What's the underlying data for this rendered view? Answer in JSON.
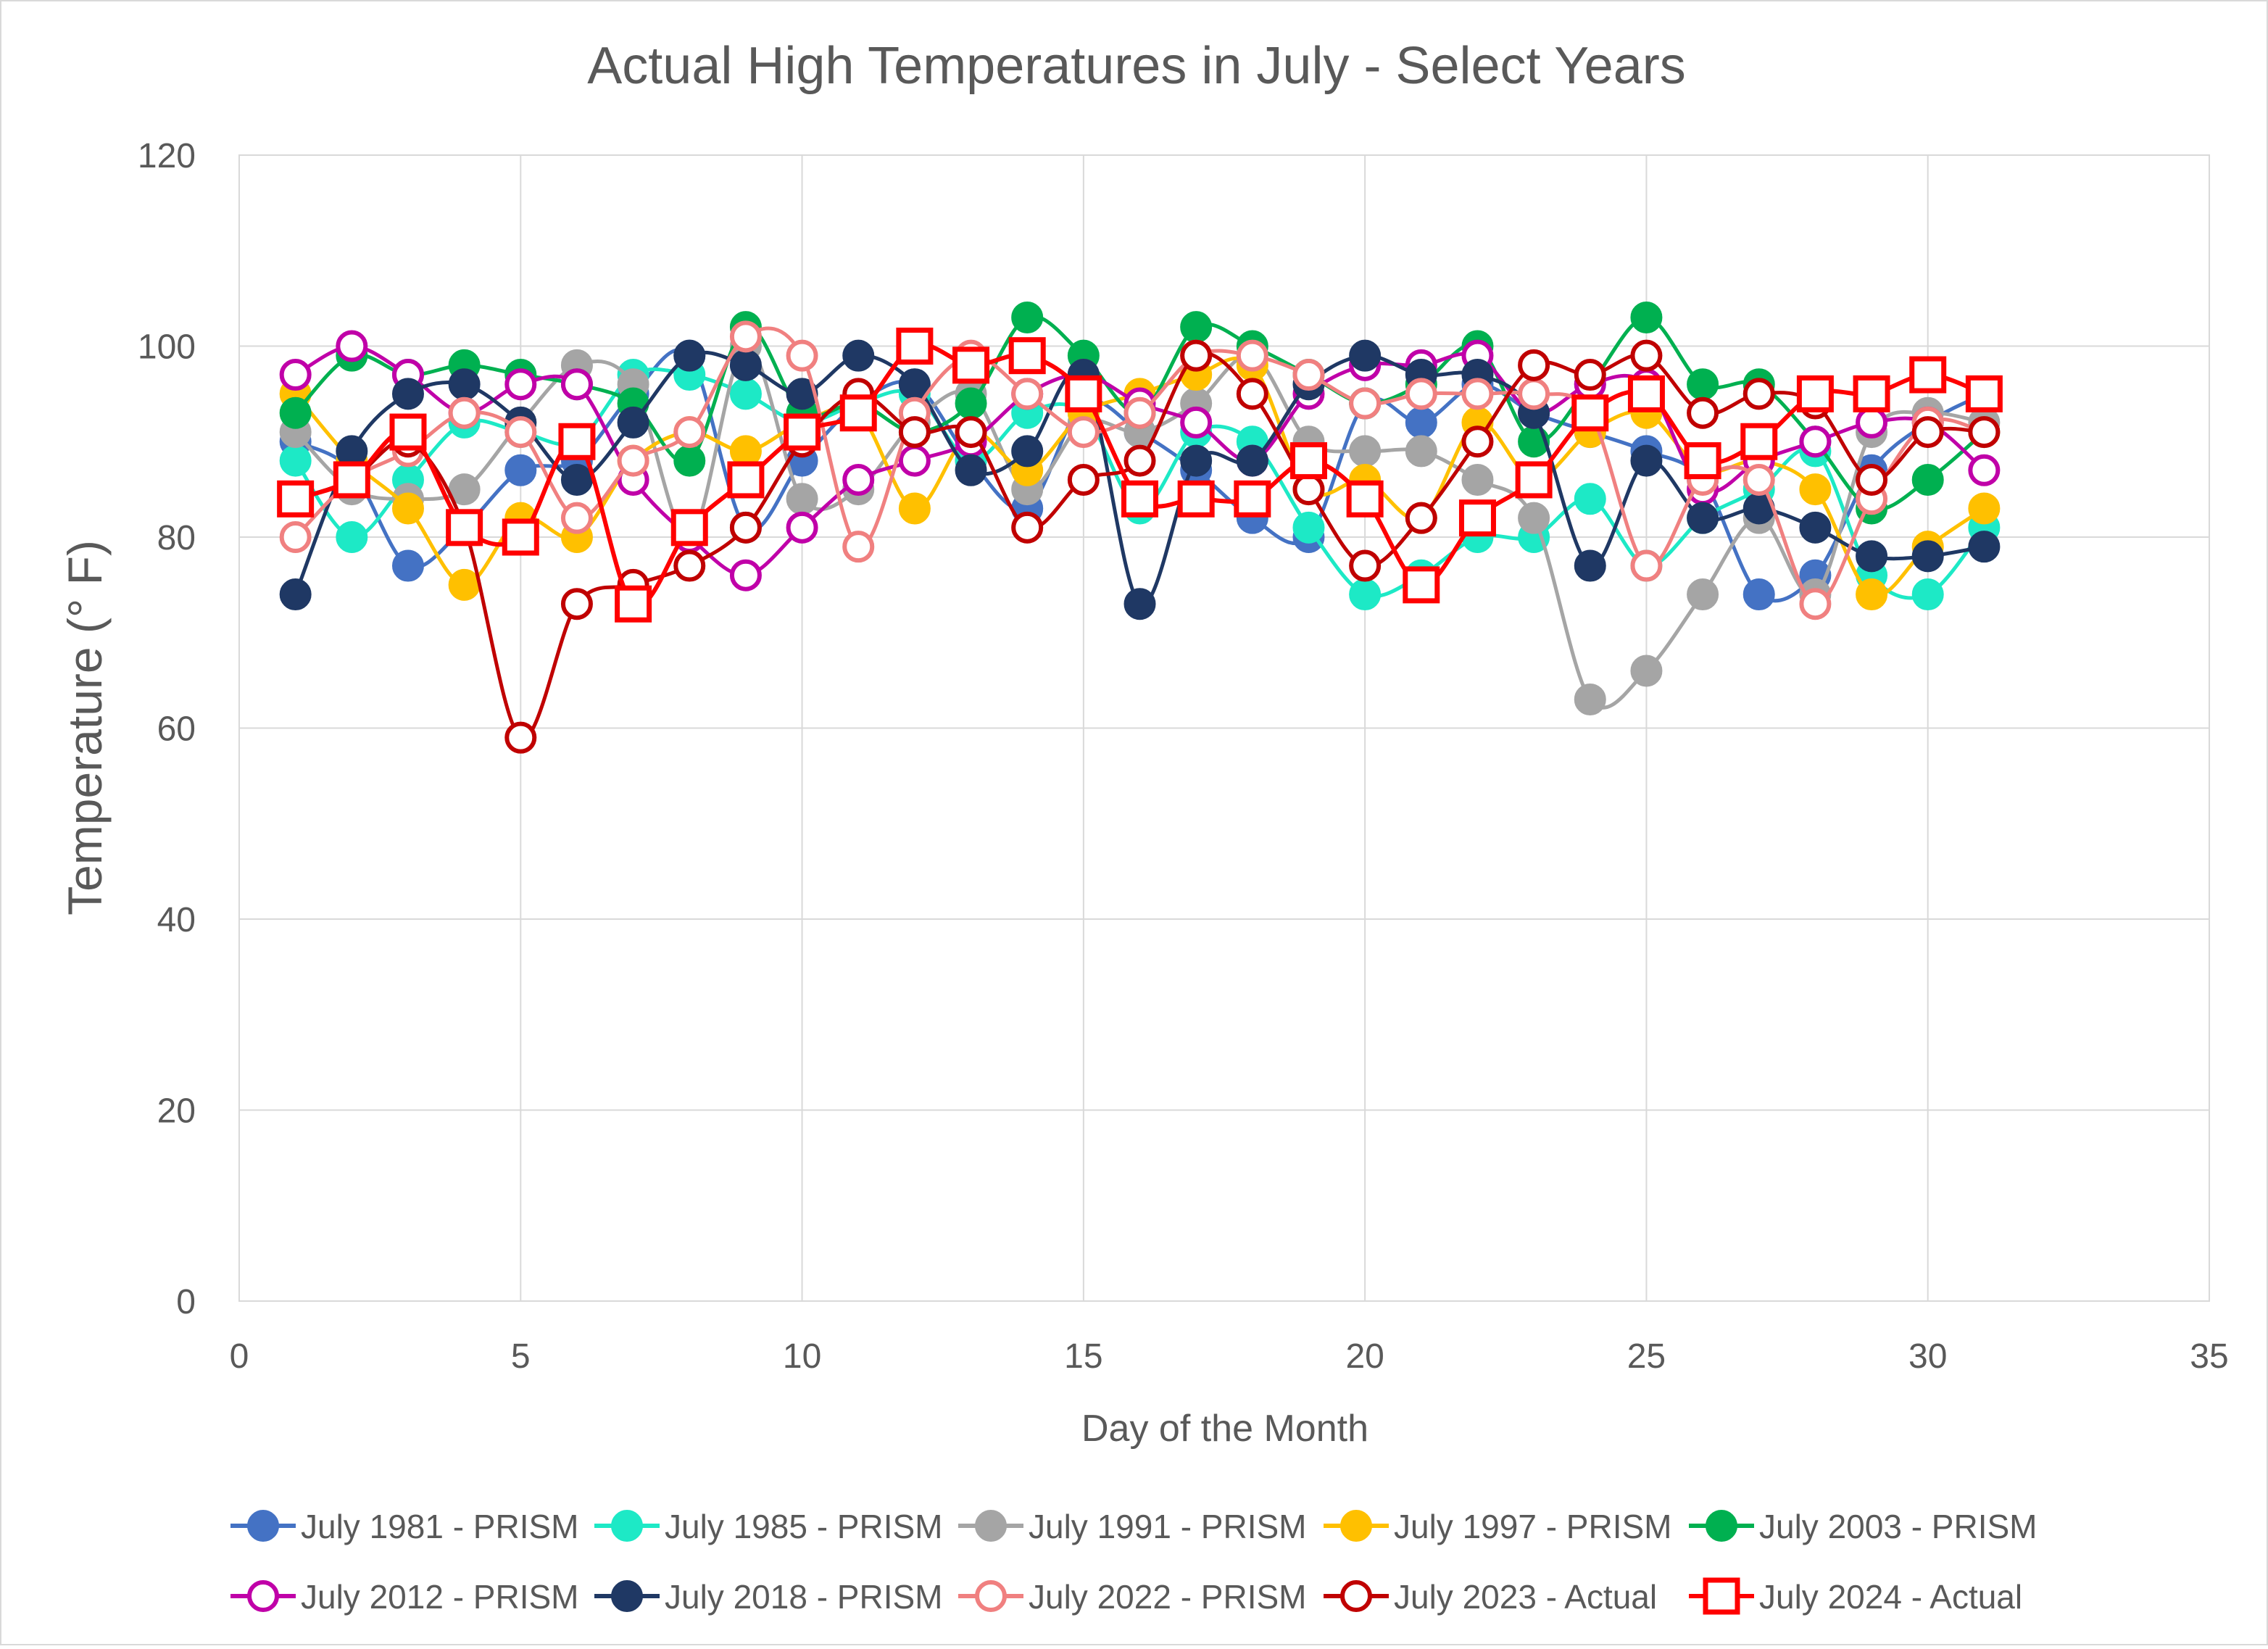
{
  "chart_data": {
    "type": "line",
    "title": "Actual High Temperatures in July - Select Years",
    "xlabel": "Day of the Month",
    "ylabel": "Temperature (° F)",
    "xlim": [
      0,
      35
    ],
    "ylim": [
      0,
      120
    ],
    "x_ticks": [
      0,
      5,
      10,
      15,
      20,
      25,
      30,
      35
    ],
    "y_ticks": [
      0,
      20,
      40,
      60,
      80,
      100,
      120
    ],
    "grid": true,
    "legend_position": "bottom",
    "x": [
      1,
      2,
      3,
      4,
      5,
      6,
      7,
      8,
      9,
      10,
      11,
      12,
      13,
      14,
      15,
      16,
      17,
      18,
      19,
      20,
      21,
      22,
      23,
      24,
      25,
      26,
      27,
      28,
      29,
      30,
      31
    ],
    "series": [
      {
        "name": "July 1981 - PRISM",
        "color": "#4472C4",
        "marker": "filled-circle",
        "values": [
          90,
          87,
          77,
          81,
          87,
          88,
          95,
          99,
          81,
          88,
          94,
          96,
          88,
          83,
          94,
          91,
          87,
          82,
          80,
          94,
          92,
          96,
          93,
          91,
          89,
          86,
          74,
          76,
          87,
          92,
          95
        ]
      },
      {
        "name": "July 1985 - PRISM",
        "color": "#1DE9C6",
        "marker": "filled-circle",
        "values": [
          88,
          80,
          86,
          92,
          91,
          90,
          97,
          97,
          95,
          92,
          94,
          95,
          88,
          93,
          93,
          83,
          91,
          90,
          81,
          74,
          76,
          80,
          80,
          84,
          77,
          82,
          85,
          89,
          76,
          74,
          81
        ]
      },
      {
        "name": "July 1991 - PRISM",
        "color": "#A5A5A5",
        "marker": "filled-circle",
        "values": [
          91,
          85,
          84,
          85,
          92,
          98,
          96,
          80,
          100,
          84,
          85,
          92,
          95,
          85,
          92,
          91,
          94,
          99,
          90,
          89,
          89,
          86,
          82,
          63,
          66,
          74,
          82,
          74,
          91,
          93,
          92
        ]
      },
      {
        "name": "July 1997 - PRISM",
        "color": "#FFC000",
        "marker": "filled-circle",
        "values": [
          95,
          88,
          83,
          75,
          82,
          80,
          88,
          91,
          89,
          92,
          93,
          83,
          91,
          87,
          93,
          95,
          97,
          98,
          85,
          86,
          82,
          92,
          86,
          91,
          93,
          87,
          88,
          85,
          74,
          79,
          83
        ]
      },
      {
        "name": "July 2003 - PRISM",
        "color": "#00B050",
        "marker": "filled-circle",
        "values": [
          93,
          99,
          97,
          98,
          97,
          96,
          94,
          88,
          102,
          93,
          94,
          91,
          94,
          103,
          99,
          93,
          102,
          100,
          97,
          94,
          96,
          100,
          90,
          96,
          103,
          96,
          96,
          90,
          83,
          86,
          91
        ]
      },
      {
        "name": "July 2012 - PRISM",
        "color": "#C000A8",
        "marker": "hollow-circle",
        "values": [
          97,
          100,
          97,
          93,
          96,
          96,
          86,
          80,
          76,
          81,
          86,
          88,
          90,
          95,
          97,
          94,
          92,
          88,
          95,
          98,
          98,
          99,
          93,
          96,
          96,
          85,
          88,
          90,
          92,
          92,
          87
        ]
      },
      {
        "name": "July 2018 - PRISM",
        "color": "#1F3864",
        "marker": "filled-circle",
        "values": [
          74,
          89,
          95,
          96,
          92,
          86,
          92,
          99,
          98,
          95,
          99,
          96,
          87,
          89,
          97,
          73,
          88,
          88,
          96,
          99,
          97,
          97,
          93,
          77,
          88,
          82,
          83,
          81,
          78,
          78,
          79
        ]
      },
      {
        "name": "July 2022 - PRISM",
        "color": "#F08080",
        "marker": "hollow-circle",
        "values": [
          80,
          86,
          89,
          93,
          91,
          82,
          88,
          91,
          101,
          99,
          79,
          93,
          99,
          95,
          91,
          93,
          99,
          99,
          97,
          94,
          95,
          95,
          95,
          93,
          77,
          86,
          86,
          73,
          84,
          92,
          91
        ]
      },
      {
        "name": "July 2023 - Actual",
        "color": "#C00000",
        "marker": "hollow-circle",
        "values": [
          84,
          86,
          90,
          81,
          59,
          73,
          75,
          77,
          81,
          90,
          95,
          91,
          91,
          81,
          86,
          88,
          99,
          95,
          85,
          77,
          82,
          90,
          98,
          97,
          99,
          93,
          95,
          94,
          86,
          91,
          91
        ]
      },
      {
        "name": "July 2024 - Actual",
        "color": "#FF0000",
        "marker": "hollow-square",
        "values": [
          84,
          86,
          91,
          81,
          80,
          90,
          73,
          81,
          86,
          91,
          93,
          100,
          98,
          99,
          95,
          84,
          84,
          84,
          88,
          84,
          75,
          82,
          86,
          93,
          95,
          88,
          90,
          95,
          95,
          97,
          95
        ]
      }
    ]
  }
}
